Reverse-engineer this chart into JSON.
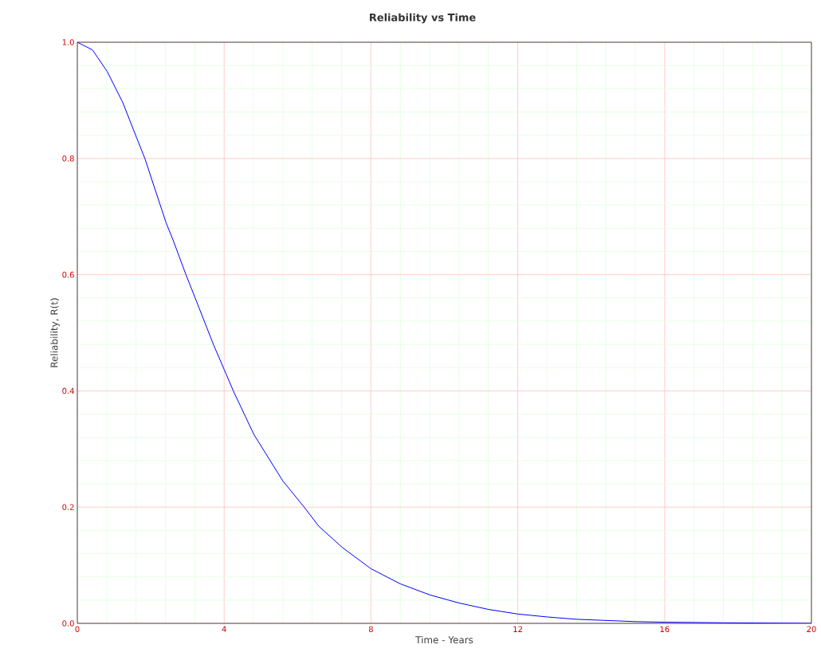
{
  "chart_data": {
    "type": "line",
    "title": "Reliability vs Time",
    "xlabel": "Time - Years",
    "ylabel": "Reliability, R(t)",
    "x": [
      0,
      0.41,
      0.81,
      1.24,
      1.62,
      1.84,
      2.42,
      2.6,
      2.96,
      3.21,
      3.72,
      4.0,
      4.25,
      4.81,
      5.6,
      6.18,
      6.58,
      7.23,
      8.0,
      8.8,
      9.6,
      10.4,
      11.2,
      12.0,
      12.8,
      13.6,
      14.4,
      15.2,
      16.0,
      17.6,
      20.0
    ],
    "series": [
      {
        "color": "#0000ff",
        "values": [
          1.0,
          0.987,
          0.95,
          0.896,
          0.835,
          0.8,
          0.689,
          0.661,
          0.6,
          0.56,
          0.478,
          0.437,
          0.4,
          0.325,
          0.245,
          0.2,
          0.167,
          0.13,
          0.094,
          0.068,
          0.049,
          0.035,
          0.024,
          0.016,
          0.011,
          0.007,
          0.005,
          0.003,
          0.002,
          0.001,
          0.0
        ]
      }
    ],
    "xlim": [
      0,
      20
    ],
    "ylim": [
      0,
      1
    ],
    "xticks": [
      0,
      4,
      8,
      12,
      16,
      20
    ],
    "yticks": [
      {
        "value": 0,
        "label": "0.0"
      },
      0.2,
      0.4,
      0.6,
      0.8,
      {
        "value": 1,
        "label": "1.0"
      }
    ],
    "grid": true,
    "marker": "none",
    "line_style": "solid"
  }
}
